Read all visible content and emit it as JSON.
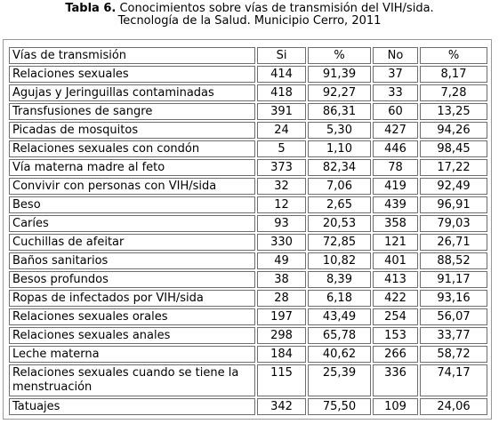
{
  "caption": {
    "label": "Tabla 6.",
    "text": "Conocimientos sobre vías de transmisión del VIH/sida.",
    "line2": "Tecnología de la Salud. Municipio Cerro, 2011"
  },
  "table": {
    "headers": [
      "Vías de transmisión",
      "Si",
      "%",
      "No",
      "%"
    ],
    "rows": [
      [
        "Relaciones sexuales",
        "414",
        "91,39",
        "37",
        "8,17"
      ],
      [
        "Agujas y Jeringuillas contaminadas",
        "418",
        "92,27",
        "33",
        "7,28"
      ],
      [
        "Transfusiones de sangre",
        "391",
        "86,31",
        "60",
        "13,25"
      ],
      [
        "Picadas de mosquitos",
        "24",
        "5,30",
        "427",
        "94,26"
      ],
      [
        "Relaciones sexuales con condón",
        "5",
        "1,10",
        "446",
        "98,45"
      ],
      [
        "Vía materna madre al feto",
        "373",
        "82,34",
        "78",
        "17,22"
      ],
      [
        "Convivir con personas con VIH/sida",
        "32",
        "7,06",
        "419",
        "92,49"
      ],
      [
        "Beso",
        "12",
        "2,65",
        "439",
        "96,91"
      ],
      [
        "Caríes",
        "93",
        "20,53",
        "358",
        "79,03"
      ],
      [
        "Cuchillas de afeitar",
        "330",
        "72,85",
        "121",
        "26,71"
      ],
      [
        "Baños sanitarios",
        "49",
        "10,82",
        "401",
        "88,52"
      ],
      [
        "Besos profundos",
        "38",
        "8,39",
        "413",
        "91,17"
      ],
      [
        "Ropas de infectados por VIH/sida",
        "28",
        "6,18",
        "422",
        "93,16"
      ],
      [
        "Relaciones sexuales orales",
        "197",
        "43,49",
        "254",
        "56,07"
      ],
      [
        "Relaciones sexuales anales",
        "298",
        "65,78",
        "153",
        "33,77"
      ],
      [
        "Leche materna",
        "184",
        "40,62",
        "266",
        "58,72"
      ],
      [
        "Relaciones sexuales cuando se tiene la menstruación",
        "115",
        "25,39",
        "336",
        "74,17"
      ],
      [
        "Tatuajes",
        "342",
        "75,50",
        "109",
        "24,06"
      ]
    ]
  }
}
